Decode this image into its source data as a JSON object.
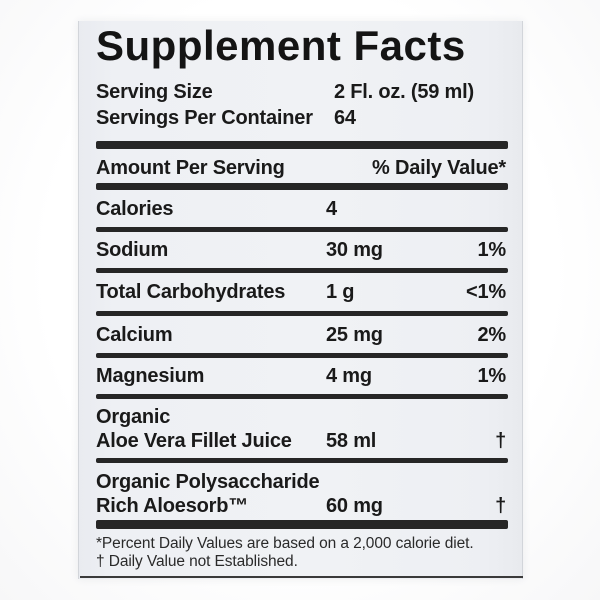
{
  "panel": {
    "title": "Supplement Facts",
    "serving_size": {
      "label": "Serving Size",
      "value": "2 Fl. oz. (59 ml)"
    },
    "servings_per_container": {
      "label": "Servings Per Container",
      "value": "64"
    },
    "column_header": {
      "left": "Amount Per Serving",
      "right": "% Daily Value*"
    },
    "nutrients": [
      {
        "name": "Calories",
        "amount": "4",
        "daily_value": ""
      },
      {
        "name": "Sodium",
        "amount": "30 mg",
        "daily_value": "1%"
      },
      {
        "name": "Total Carbohydrates",
        "amount": "1 g",
        "daily_value": "<1%"
      },
      {
        "name": "Calcium",
        "amount": "25 mg",
        "daily_value": "2%"
      },
      {
        "name": "Magnesium",
        "amount": "4 mg",
        "daily_value": "1%"
      }
    ],
    "ingredients": [
      {
        "name_line1": "Organic",
        "name_line2": "Aloe Vera Fillet Juice",
        "amount": "58 ml",
        "daily_value": "†"
      },
      {
        "name_line1": "Organic Polysaccharide",
        "name_line2": "Rich Aloesorb™",
        "amount": "60 mg",
        "daily_value": "†"
      }
    ],
    "footnotes": [
      "*Percent Daily Values are based on a 2,000 calorie diet.",
      "† Daily Value not Established."
    ],
    "colors": {
      "panel_bg": "#eef0f4",
      "page_bg": "#fdfdfd",
      "text": "#1a1a1a",
      "bar": "#262626"
    }
  }
}
